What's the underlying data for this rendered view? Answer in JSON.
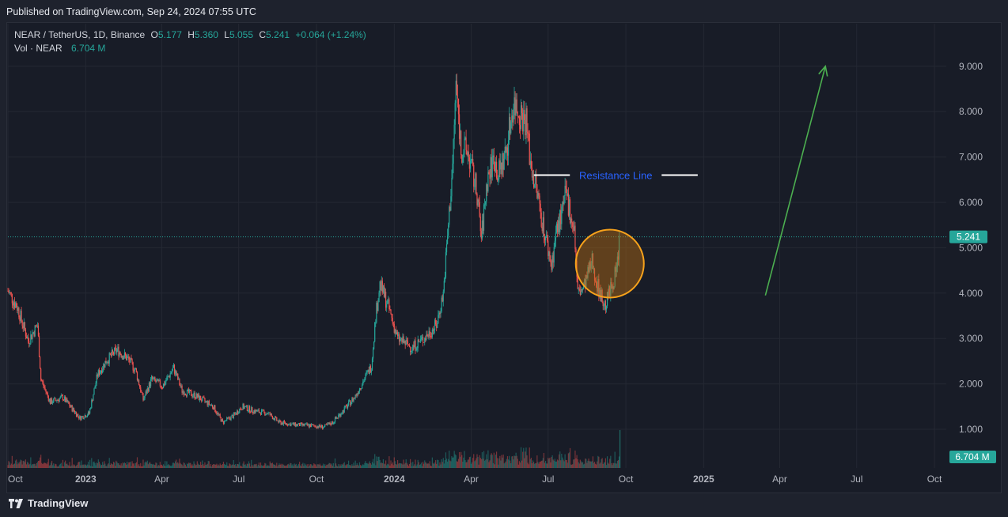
{
  "header": {
    "published": "Published on TradingView.com, Sep 24, 2024 07:55 UTC"
  },
  "legend": {
    "symbol": "NEAR / TetherUS, 1D, Binance",
    "open_label": "O",
    "open": "5.177",
    "high_label": "H",
    "high": "5.360",
    "low_label": "L",
    "low": "5.055",
    "close_label": "C",
    "close": "5.241",
    "change": "+0.064 (+1.24%)",
    "vol_label": "Vol · NEAR",
    "vol_value": "6.704 M"
  },
  "footer": {
    "brand": "TradingView"
  },
  "colors": {
    "up": "#26a69a",
    "down": "#ef5350",
    "background": "#181c27",
    "grid": "#242833",
    "annotation_green": "#4caf50",
    "circle_fill": "#b86d12",
    "circle_stroke": "#f7a21b",
    "resistance_text": "#2962ff",
    "last_price_tag": "#26a69a"
  },
  "chart_data": {
    "type": "candlestick",
    "symbol": "NEAR/USDT",
    "interval": "1D",
    "y_axis": {
      "min": 0,
      "max": 9.5,
      "ticks": [
        "1.000",
        "2.000",
        "3.000",
        "4.000",
        "5.000",
        "6.000",
        "7.000",
        "8.000",
        "9.000"
      ]
    },
    "x_axis": {
      "start": "2022-10-01",
      "end": "2025-10-15",
      "ticks": [
        {
          "label": "Oct",
          "date": "2022-10-01",
          "bold": false
        },
        {
          "label": "2023",
          "date": "2023-01-01",
          "bold": true
        },
        {
          "label": "Apr",
          "date": "2023-04-01",
          "bold": false
        },
        {
          "label": "Jul",
          "date": "2023-07-01",
          "bold": false
        },
        {
          "label": "Oct",
          "date": "2023-10-01",
          "bold": false
        },
        {
          "label": "2024",
          "date": "2024-01-01",
          "bold": true
        },
        {
          "label": "Apr",
          "date": "2024-04-01",
          "bold": false
        },
        {
          "label": "Jul",
          "date": "2024-07-01",
          "bold": false
        },
        {
          "label": "Oct",
          "date": "2024-10-01",
          "bold": false
        },
        {
          "label": "2025",
          "date": "2025-01-01",
          "bold": true
        },
        {
          "label": "Apr",
          "date": "2025-04-01",
          "bold": false
        },
        {
          "label": "Jul",
          "date": "2025-07-01",
          "bold": false
        },
        {
          "label": "Oct",
          "date": "2025-10-01",
          "bold": false
        }
      ]
    },
    "price_keypoints": [
      [
        "2022-10-01",
        4.05
      ],
      [
        "2022-10-12",
        3.7
      ],
      [
        "2022-10-25",
        2.95
      ],
      [
        "2022-11-05",
        3.3
      ],
      [
        "2022-11-09",
        2.1
      ],
      [
        "2022-11-20",
        1.6
      ],
      [
        "2022-12-05",
        1.7
      ],
      [
        "2022-12-25",
        1.25
      ],
      [
        "2023-01-05",
        1.35
      ],
      [
        "2023-01-15",
        2.2
      ],
      [
        "2023-01-25",
        2.5
      ],
      [
        "2023-02-07",
        2.75
      ],
      [
        "2023-02-20",
        2.55
      ],
      [
        "2023-03-01",
        2.3
      ],
      [
        "2023-03-10",
        1.65
      ],
      [
        "2023-03-20",
        2.1
      ],
      [
        "2023-04-02",
        1.95
      ],
      [
        "2023-04-15",
        2.35
      ],
      [
        "2023-04-25",
        1.85
      ],
      [
        "2023-05-10",
        1.75
      ],
      [
        "2023-06-01",
        1.5
      ],
      [
        "2023-06-12",
        1.15
      ],
      [
        "2023-06-25",
        1.3
      ],
      [
        "2023-07-05",
        1.5
      ],
      [
        "2023-07-20",
        1.4
      ],
      [
        "2023-08-05",
        1.35
      ],
      [
        "2023-08-18",
        1.15
      ],
      [
        "2023-09-05",
        1.1
      ],
      [
        "2023-09-25",
        1.08
      ],
      [
        "2023-10-10",
        1.05
      ],
      [
        "2023-10-20",
        1.15
      ],
      [
        "2023-11-01",
        1.4
      ],
      [
        "2023-11-15",
        1.7
      ],
      [
        "2023-11-25",
        2.05
      ],
      [
        "2023-12-05",
        2.4
      ],
      [
        "2023-12-10",
        3.5
      ],
      [
        "2023-12-15",
        4.2
      ],
      [
        "2023-12-25",
        3.7
      ],
      [
        "2024-01-05",
        3.0
      ],
      [
        "2024-01-22",
        2.8
      ],
      [
        "2024-02-05",
        3.0
      ],
      [
        "2024-02-20",
        3.3
      ],
      [
        "2024-02-28",
        4.0
      ],
      [
        "2024-03-05",
        5.5
      ],
      [
        "2024-03-10",
        6.8
      ],
      [
        "2024-03-14",
        8.6
      ],
      [
        "2024-03-20",
        7.2
      ],
      [
        "2024-03-28",
        7.1
      ],
      [
        "2024-04-08",
        6.2
      ],
      [
        "2024-04-13",
        5.2
      ],
      [
        "2024-04-20",
        6.5
      ],
      [
        "2024-04-28",
        7.0
      ],
      [
        "2024-05-03",
        6.6
      ],
      [
        "2024-05-12",
        7.1
      ],
      [
        "2024-05-21",
        8.2
      ],
      [
        "2024-05-28",
        8.0
      ],
      [
        "2024-06-05",
        7.8
      ],
      [
        "2024-06-10",
        6.9
      ],
      [
        "2024-06-18",
        6.2
      ],
      [
        "2024-06-25",
        5.5
      ],
      [
        "2024-07-05",
        4.6
      ],
      [
        "2024-07-10",
        5.3
      ],
      [
        "2024-07-18",
        5.8
      ],
      [
        "2024-07-22",
        6.2
      ],
      [
        "2024-08-01",
        5.4
      ],
      [
        "2024-08-05",
        4.0
      ],
      [
        "2024-08-12",
        4.1
      ],
      [
        "2024-08-22",
        4.7
      ],
      [
        "2024-08-28",
        4.2
      ],
      [
        "2024-09-06",
        3.7
      ],
      [
        "2024-09-13",
        4.1
      ],
      [
        "2024-09-20",
        4.5
      ],
      [
        "2024-09-24",
        5.24
      ]
    ],
    "volume_scale_max": 5,
    "last_price": "5.241",
    "last_volume": "6.704 M",
    "annotations": [
      {
        "type": "resistance_line",
        "price": 6.6,
        "from": "2024-06-14",
        "to": "2024-12-25",
        "label": "Resistance Line"
      },
      {
        "type": "circle",
        "center_date": "2024-09-12",
        "center_price": 4.65,
        "note": "highlight"
      },
      {
        "type": "arrow",
        "from_date": "2025-03-15",
        "from_price": 3.95,
        "to_date": "2025-05-25",
        "to_price": 9.0
      }
    ]
  }
}
